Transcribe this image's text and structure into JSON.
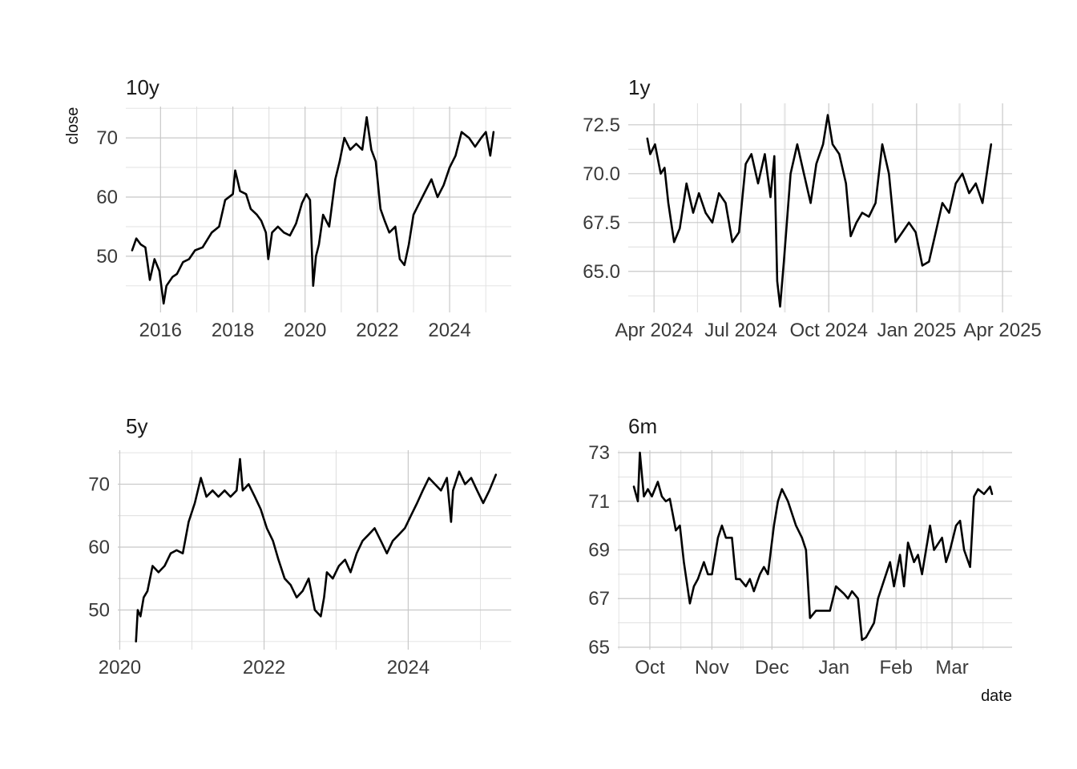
{
  "page": {
    "background": "#ffffff",
    "line_color": "#000000",
    "grid_color": "#c8c8c8"
  },
  "labels": {
    "y_axis": "close",
    "x_axis": "date"
  },
  "chart_data": [
    {
      "type": "line",
      "title": "10y",
      "ylabel": "close",
      "xlabel": "",
      "x_ticks": [
        "2016",
        "2018",
        "2020",
        "2022",
        "2024"
      ],
      "y_ticks": [
        50,
        60,
        70
      ],
      "xlim": [
        "2015-01-15",
        "2025-09-15"
      ],
      "ylim": [
        40.5,
        75.3
      ],
      "grid": true,
      "series": [
        {
          "x": [
            "2015-03-20",
            "2015-05-01",
            "2015-06-15",
            "2015-08-01",
            "2015-09-15",
            "2015-11-01",
            "2015-12-20",
            "2016-02-01",
            "2016-03-01",
            "2016-05-01",
            "2016-06-15",
            "2016-08-15",
            "2016-10-15",
            "2016-12-15",
            "2017-03-01",
            "2017-06-01",
            "2017-08-15",
            "2017-10-15",
            "2018-01-01",
            "2018-01-25",
            "2018-03-15",
            "2018-05-15",
            "2018-07-01",
            "2018-09-01",
            "2018-10-15",
            "2018-12-01",
            "2018-12-25",
            "2019-02-01",
            "2019-04-01",
            "2019-06-01",
            "2019-08-01",
            "2019-10-01",
            "2019-12-01",
            "2020-01-15",
            "2020-02-20",
            "2020-03-23",
            "2020-04-20",
            "2020-05-20",
            "2020-07-01",
            "2020-09-01",
            "2020-11-01",
            "2020-12-15",
            "2021-02-01",
            "2021-04-01",
            "2021-06-01",
            "2021-08-01",
            "2021-09-15",
            "2021-11-01",
            "2021-12-15",
            "2022-02-01",
            "2022-03-15",
            "2022-05-01",
            "2022-07-01",
            "2022-08-15",
            "2022-10-01",
            "2022-11-15",
            "2023-01-01",
            "2023-03-01",
            "2023-05-01",
            "2023-07-01",
            "2023-09-01",
            "2023-11-01",
            "2024-01-01",
            "2024-03-01",
            "2024-05-01",
            "2024-07-15",
            "2024-09-15",
            "2024-11-15",
            "2025-01-01",
            "2025-02-15",
            "2025-03-20"
          ],
          "y": [
            51,
            53,
            52,
            51.5,
            46,
            49.5,
            47.5,
            42,
            45,
            46.5,
            47,
            49,
            49.5,
            51,
            51.5,
            54,
            55,
            59.5,
            60.5,
            64.5,
            61,
            60.5,
            58,
            57,
            56,
            54,
            49.5,
            54,
            55,
            54,
            53.5,
            55.5,
            59,
            60.5,
            59.5,
            45,
            50,
            52,
            57,
            55,
            63,
            66,
            70,
            68,
            69,
            68,
            73.5,
            68,
            66,
            58,
            56,
            54,
            55,
            49.5,
            48.5,
            52,
            57,
            59,
            61,
            63,
            60,
            62,
            65,
            67,
            71,
            70,
            68.5,
            70,
            71,
            67,
            71
          ]
        }
      ]
    },
    {
      "type": "line",
      "title": "1y",
      "ylabel": "",
      "xlabel": "",
      "x_ticks": [
        "Apr 2024",
        "Jul 2024",
        "Oct 2024",
        "Jan 2025",
        "Apr 2025"
      ],
      "y_ticks": [
        65.0,
        67.5,
        70.0,
        72.5
      ],
      "xlim": [
        "2024-03-05",
        "2025-04-11"
      ],
      "ylim": [
        62.9,
        73.6
      ],
      "grid": true,
      "series": [
        {
          "x": [
            "2024-03-25",
            "2024-03-28",
            "2024-04-02",
            "2024-04-08",
            "2024-04-12",
            "2024-04-16",
            "2024-04-22",
            "2024-04-28",
            "2024-05-05",
            "2024-05-12",
            "2024-05-18",
            "2024-05-25",
            "2024-06-01",
            "2024-06-08",
            "2024-06-15",
            "2024-06-22",
            "2024-06-29",
            "2024-07-06",
            "2024-07-12",
            "2024-07-19",
            "2024-07-26",
            "2024-08-01",
            "2024-08-05",
            "2024-08-08",
            "2024-08-11",
            "2024-08-15",
            "2024-08-22",
            "2024-08-29",
            "2024-09-05",
            "2024-09-12",
            "2024-09-18",
            "2024-09-25",
            "2024-09-30",
            "2024-10-05",
            "2024-10-12",
            "2024-10-19",
            "2024-10-24",
            "2024-10-30",
            "2024-11-05",
            "2024-11-12",
            "2024-11-19",
            "2024-11-26",
            "2024-12-03",
            "2024-12-10",
            "2024-12-17",
            "2024-12-24",
            "2024-12-31",
            "2025-01-07",
            "2025-01-14",
            "2025-01-21",
            "2025-01-28",
            "2025-02-04",
            "2025-02-11",
            "2025-02-18",
            "2025-02-25",
            "2025-03-04",
            "2025-03-11",
            "2025-03-17",
            "2025-03-20"
          ],
          "y": [
            71.8,
            71,
            71.5,
            70,
            70.3,
            68.5,
            66.5,
            67.2,
            69.5,
            68,
            69,
            68,
            67.5,
            69,
            68.5,
            66.5,
            67,
            70.5,
            71,
            69.5,
            71,
            68.8,
            70.9,
            64.5,
            63.2,
            65.5,
            70,
            71.5,
            70,
            68.5,
            70.5,
            71.5,
            73,
            71.5,
            71,
            69.5,
            66.8,
            67.5,
            68,
            67.8,
            68.5,
            71.5,
            70,
            66.5,
            67,
            67.5,
            67,
            65.3,
            65.5,
            67,
            68.5,
            68,
            69.5,
            70,
            69,
            69.5,
            68.5,
            70.5,
            71.5
          ]
        }
      ]
    },
    {
      "type": "line",
      "title": "5y",
      "ylabel": "",
      "xlabel": "",
      "x_ticks": [
        "2020",
        "2022",
        "2024"
      ],
      "y_ticks": [
        50,
        60,
        70
      ],
      "xlim": [
        "2019-12-22",
        "2025-06-06"
      ],
      "ylim": [
        43.7,
        75.4
      ],
      "grid": true,
      "series": [
        {
          "x": [
            "2020-03-23",
            "2020-04-01",
            "2020-04-15",
            "2020-05-01",
            "2020-05-20",
            "2020-06-15",
            "2020-07-15",
            "2020-08-15",
            "2020-09-15",
            "2020-10-15",
            "2020-11-15",
            "2020-12-15",
            "2021-01-15",
            "2021-02-15",
            "2021-03-15",
            "2021-04-15",
            "2021-05-15",
            "2021-06-15",
            "2021-07-15",
            "2021-08-15",
            "2021-09-01",
            "2021-09-15",
            "2021-10-15",
            "2021-11-15",
            "2021-12-15",
            "2022-01-15",
            "2022-02-15",
            "2022-03-15",
            "2022-04-15",
            "2022-05-15",
            "2022-06-15",
            "2022-07-15",
            "2022-08-15",
            "2022-09-15",
            "2022-10-15",
            "2022-11-01",
            "2022-11-15",
            "2022-12-15",
            "2023-01-15",
            "2023-02-15",
            "2023-03-15",
            "2023-04-15",
            "2023-05-15",
            "2023-06-15",
            "2023-07-15",
            "2023-08-15",
            "2023-09-15",
            "2023-10-15",
            "2023-11-15",
            "2023-12-15",
            "2024-01-15",
            "2024-02-15",
            "2024-03-15",
            "2024-04-15",
            "2024-05-15",
            "2024-06-15",
            "2024-07-15",
            "2024-08-05",
            "2024-08-15",
            "2024-09-15",
            "2024-10-15",
            "2024-11-15",
            "2024-12-15",
            "2025-01-15",
            "2025-02-15",
            "2025-03-20"
          ],
          "y": [
            45,
            50,
            49,
            52,
            53,
            57,
            56,
            57,
            59,
            59.5,
            59,
            64,
            67,
            71,
            68,
            69,
            68,
            69,
            68,
            69,
            74,
            69,
            70,
            68,
            66,
            63,
            61,
            58,
            55,
            54,
            52,
            53,
            55,
            50,
            49,
            52,
            56,
            55,
            57,
            58,
            56,
            59,
            61,
            62,
            63,
            61,
            59,
            61,
            62,
            63,
            65,
            67,
            69,
            71,
            70,
            69,
            71,
            64,
            69,
            72,
            70,
            71,
            69,
            67,
            69,
            71.5
          ]
        }
      ]
    },
    {
      "type": "line",
      "title": "6m",
      "ylabel": "",
      "xlabel": "date",
      "x_ticks": [
        "Oct",
        "Nov",
        "Dec",
        "Jan",
        "Feb",
        "Mar"
      ],
      "y_ticks": [
        65,
        67,
        69,
        71,
        73
      ],
      "xlim": [
        "2024-09-15",
        "2025-03-31"
      ],
      "ylim": [
        64.9,
        73.1
      ],
      "grid": true,
      "series": [
        {
          "x": [
            "2024-09-23",
            "2024-09-25",
            "2024-09-26",
            "2024-09-28",
            "2024-09-30",
            "2024-10-02",
            "2024-10-05",
            "2024-10-07",
            "2024-10-09",
            "2024-10-11",
            "2024-10-14",
            "2024-10-16",
            "2024-10-18",
            "2024-10-21",
            "2024-10-23",
            "2024-10-25",
            "2024-10-28",
            "2024-10-30",
            "2024-11-01",
            "2024-11-04",
            "2024-11-06",
            "2024-11-08",
            "2024-11-11",
            "2024-11-13",
            "2024-11-15",
            "2024-11-18",
            "2024-11-20",
            "2024-11-22",
            "2024-11-25",
            "2024-11-27",
            "2024-11-29",
            "2024-12-02",
            "2024-12-04",
            "2024-12-06",
            "2024-12-09",
            "2024-12-11",
            "2024-12-13",
            "2024-12-16",
            "2024-12-18",
            "2024-12-20",
            "2024-12-23",
            "2024-12-27",
            "2024-12-30",
            "2025-01-02",
            "2025-01-06",
            "2025-01-08",
            "2025-01-10",
            "2025-01-13",
            "2025-01-15",
            "2025-01-17",
            "2025-01-21",
            "2025-01-23",
            "2025-01-27",
            "2025-01-29",
            "2025-01-31",
            "2025-02-03",
            "2025-02-05",
            "2025-02-07",
            "2025-02-10",
            "2025-02-12",
            "2025-02-14",
            "2025-02-18",
            "2025-02-20",
            "2025-02-24",
            "2025-02-26",
            "2025-02-28",
            "2025-03-03",
            "2025-03-05",
            "2025-03-07",
            "2025-03-10",
            "2025-03-12",
            "2025-03-14",
            "2025-03-17",
            "2025-03-19",
            "2025-03-20",
            "2025-03-21"
          ],
          "y": [
            71.6,
            71,
            73,
            71.2,
            71.5,
            71.2,
            71.8,
            71.2,
            71,
            71.1,
            69.8,
            70,
            68.5,
            66.8,
            67.5,
            67.8,
            68.5,
            68,
            68,
            69.5,
            70,
            69.5,
            69.5,
            67.8,
            67.8,
            67.5,
            67.8,
            67.3,
            68,
            68.3,
            68,
            70,
            71,
            71.5,
            71,
            70.5,
            70,
            69.5,
            69,
            66.2,
            66.5,
            66.5,
            66.5,
            67.5,
            67.2,
            67,
            67.3,
            67,
            65.3,
            65.4,
            66,
            67,
            68,
            68.5,
            67.5,
            68.8,
            67.5,
            69.3,
            68.5,
            68.8,
            68,
            70,
            69,
            69.5,
            68.5,
            69,
            70,
            70.2,
            69,
            68.3,
            71.2,
            71.5,
            71.3,
            71.5,
            71.6,
            71.3
          ]
        }
      ]
    }
  ]
}
